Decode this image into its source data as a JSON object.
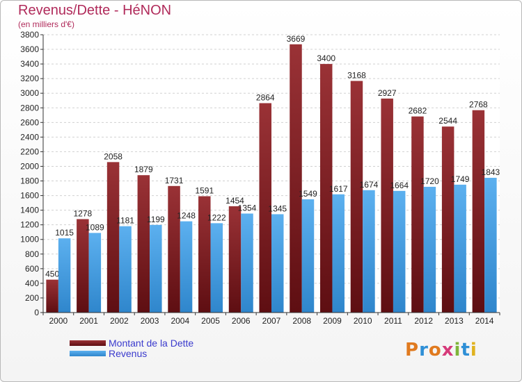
{
  "header": {
    "title": "Revenus/Dette - HéNON",
    "subtitle": "(en milliers d'€)"
  },
  "legend": {
    "items": [
      "Montant de la Dette",
      "Revenus"
    ]
  },
  "logo": {
    "text": "Proxiti",
    "letters": [
      "P",
      "r",
      "o",
      "x",
      "i",
      "t",
      "i"
    ],
    "colors": [
      "#e07a1f",
      "#2e8fd6",
      "#e07a1f",
      "#d63a7a",
      "#7fb53a",
      "#2e8fd6",
      "#e0b21f"
    ]
  },
  "colors": {
    "debt": "#7a1a1e",
    "revenue": "#4aa3e6"
  },
  "chart_data": {
    "type": "bar",
    "title": "Revenus/Dette - HéNON",
    "subtitle": "(en milliers d'€)",
    "categories": [
      "2000",
      "2001",
      "2002",
      "2003",
      "2004",
      "2005",
      "2006",
      "2007",
      "2008",
      "2009",
      "2010",
      "2011",
      "2012",
      "2013",
      "2014"
    ],
    "series": [
      {
        "name": "Montant de la Dette",
        "values": [
          450,
          1278,
          2058,
          1879,
          1731,
          1591,
          1454,
          2864,
          3669,
          3400,
          3168,
          2927,
          2682,
          2544,
          2768
        ]
      },
      {
        "name": "Revenus",
        "values": [
          1015,
          1089,
          1181,
          1199,
          1248,
          1222,
          1354,
          1345,
          1549,
          1617,
          1674,
          1664,
          1720,
          1749,
          1843
        ]
      }
    ],
    "yticks": [
      0,
      200,
      400,
      600,
      800,
      1000,
      1200,
      1400,
      1600,
      1800,
      2000,
      2200,
      2400,
      2600,
      2800,
      3000,
      3200,
      3400,
      3600,
      3800
    ],
    "ylim": [
      0,
      3800
    ],
    "xlabel": "",
    "ylabel": "",
    "grid": true,
    "legend_position": "bottom-left"
  }
}
